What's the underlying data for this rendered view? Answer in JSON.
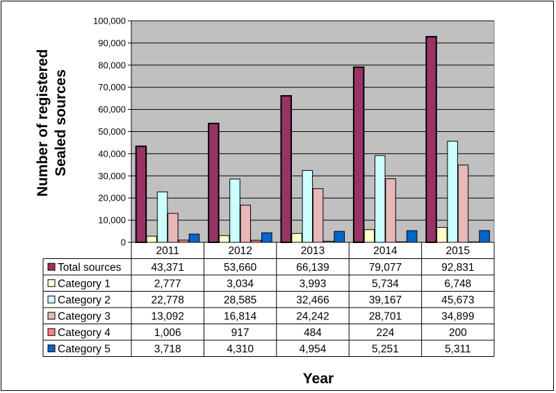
{
  "chart_data": {
    "type": "bar",
    "xlabel": "Year",
    "ylabel_lines": [
      "Number of registered",
      "Sealed sources"
    ],
    "ylim": [
      0,
      100000
    ],
    "yticks": [
      "0",
      "10,000",
      "20,000",
      "30,000",
      "40,000",
      "50,000",
      "60,000",
      "70,000",
      "80,000",
      "90,000",
      "100,000"
    ],
    "grid": true,
    "legend": "data-table",
    "categories": [
      "2011",
      "2012",
      "2013",
      "2014",
      "2015"
    ],
    "series": [
      {
        "name": "Total sources",
        "color": "#993366",
        "values": [
          43371,
          53660,
          66139,
          79077,
          92831
        ],
        "labels": [
          "43,371",
          "53,660",
          "66,139",
          "79,077",
          "92,831"
        ]
      },
      {
        "name": "Category 1",
        "color": "#FFFFCC",
        "values": [
          2777,
          3034,
          3993,
          5734,
          6748
        ],
        "labels": [
          "2,777",
          "3,034",
          "3,993",
          "5,734",
          "6,748"
        ]
      },
      {
        "name": "Category 2",
        "color": "#CCFFFF",
        "values": [
          22778,
          28585,
          32466,
          39167,
          45673
        ],
        "labels": [
          "22,778",
          "28,585",
          "32,466",
          "39,167",
          "45,673"
        ]
      },
      {
        "name": "Category 3",
        "color": "#E6B8B7",
        "values": [
          13092,
          16814,
          24242,
          28701,
          34899
        ],
        "labels": [
          "13,092",
          "16,814",
          "24,242",
          "28,701",
          "34,899"
        ]
      },
      {
        "name": "Category 4",
        "color": "#FF8080",
        "values": [
          1006,
          917,
          484,
          224,
          200
        ],
        "labels": [
          "1,006",
          "917",
          "484",
          "224",
          "200"
        ]
      },
      {
        "name": "Category 5",
        "color": "#0066CC",
        "values": [
          3718,
          4310,
          4954,
          5251,
          5311
        ],
        "labels": [
          "3,718",
          "4,310",
          "4,954",
          "5,251",
          "5,311"
        ]
      }
    ],
    "colors": {
      "plot_background": "#C0C0C0",
      "gridline": "#000000"
    }
  }
}
